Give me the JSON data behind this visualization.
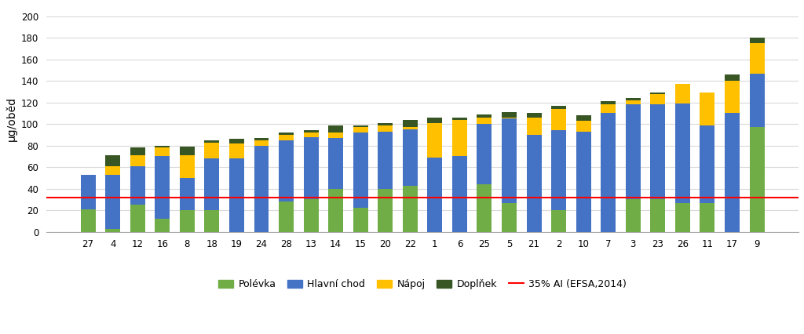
{
  "categories": [
    "27",
    "4",
    "12",
    "16",
    "8",
    "18",
    "19",
    "24",
    "28",
    "13",
    "14",
    "15",
    "20",
    "22",
    "1",
    "6",
    "25",
    "5",
    "21",
    "2",
    "10",
    "7",
    "3",
    "23",
    "26",
    "11",
    "17",
    "9"
  ],
  "polevka": [
    21,
    3,
    25,
    12,
    20,
    20,
    0,
    0,
    28,
    30,
    40,
    22,
    40,
    43,
    0,
    0,
    44,
    27,
    0,
    20,
    0,
    0,
    30,
    30,
    27,
    27,
    0,
    97
  ],
  "hlavni_chod": [
    32,
    50,
    36,
    58,
    30,
    48,
    68,
    80,
    57,
    58,
    47,
    70,
    53,
    52,
    69,
    70,
    56,
    78,
    90,
    74,
    93,
    110,
    88,
    88,
    92,
    72,
    110,
    50
  ],
  "napoj": [
    0,
    8,
    10,
    8,
    21,
    15,
    14,
    5,
    5,
    4,
    5,
    5,
    6,
    2,
    32,
    34,
    6,
    1,
    16,
    20,
    10,
    8,
    4,
    10,
    18,
    30,
    30,
    28
  ],
  "doplnek": [
    0,
    10,
    7,
    2,
    8,
    2,
    4,
    2,
    2,
    2,
    7,
    2,
    2,
    7,
    5,
    2,
    3,
    5,
    4,
    3,
    5,
    3,
    2,
    1,
    0,
    0,
    6,
    5
  ],
  "reference_line": 32,
  "colors": {
    "polevka": "#70ad47",
    "hlavni_chod": "#4472c4",
    "napoj": "#ffc000",
    "doplnek": "#375623",
    "reference": "#ff0000"
  },
  "ylabel": "µg/oběd",
  "ylim": [
    0,
    210
  ],
  "yticks": [
    0,
    20,
    40,
    60,
    80,
    100,
    120,
    140,
    160,
    180,
    200
  ],
  "legend_labels": [
    "Polévka",
    "Hlavní chod",
    "Nápoj",
    "Doplňek",
    "35% AI (EFSA,2014)"
  ],
  "background_color": "#ffffff",
  "grid_color": "#d9d9d9",
  "bar_width": 0.6
}
